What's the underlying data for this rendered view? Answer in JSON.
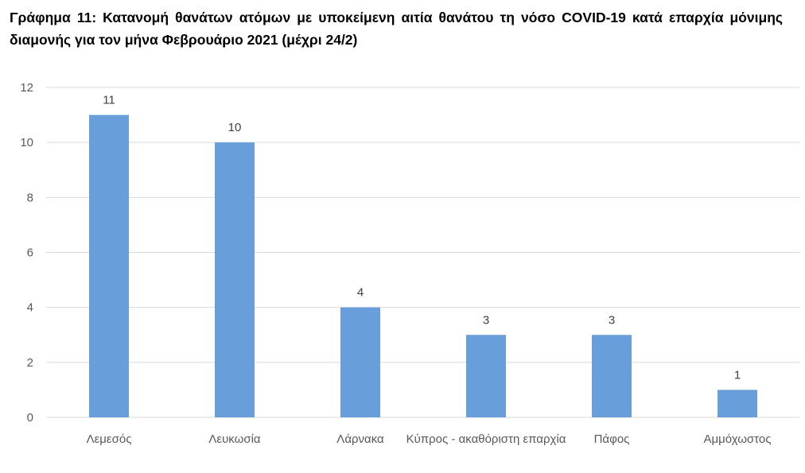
{
  "chart_data": {
    "type": "bar",
    "title": "Γράφημα 11: Κατανομή θανάτων ατόμων με υποκείμενη αιτία θανάτου τη νόσο COVID-19 κατά επαρχία μόνιμης διαμονής για τον μήνα Φεβρουάριο 2021 (μέχρι 24/2)",
    "categories": [
      "Λεμεσός",
      "Λευκωσία",
      "Λάρνακα",
      "Κύπρος - ακαθόριστη επαρχία",
      "Πάφος",
      "Αμμόχωστος"
    ],
    "values": [
      11,
      10,
      4,
      3,
      3,
      1
    ],
    "data_labels": [
      "11",
      "10",
      "4",
      "3",
      "3",
      "1"
    ],
    "xlabel": "",
    "ylabel": "",
    "ylim": [
      0,
      12
    ],
    "yticks": [
      0,
      2,
      4,
      6,
      8,
      10,
      12
    ],
    "ytick_labels": [
      "0",
      "2",
      "4",
      "6",
      "8",
      "10",
      "12"
    ],
    "grid": "horizontal",
    "legend": "none",
    "bar_color": "#689ED9",
    "grid_color": "#D9D9D9"
  }
}
